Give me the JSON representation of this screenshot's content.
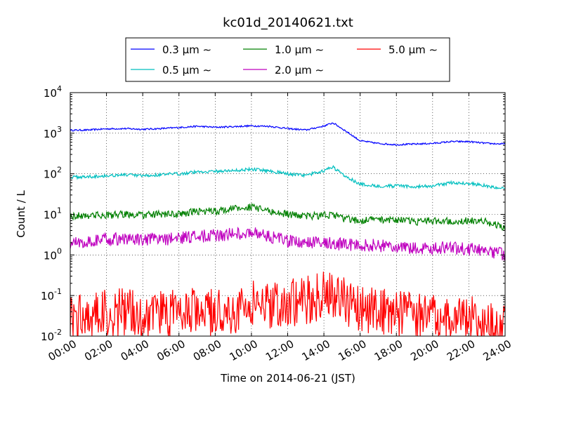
{
  "chart_data": {
    "type": "line",
    "title": "kc01d_20140621.txt",
    "xlabel": "Time on 2014-06-21 (JST)",
    "ylabel": "Count / L",
    "yscale": "log",
    "ylim": [
      0.01,
      10000
    ],
    "xlim": [
      "00:00",
      "24:00"
    ],
    "grid": true,
    "legend_position": "top-center",
    "x_ticks": [
      "00:00",
      "02:00",
      "04:00",
      "06:00",
      "08:00",
      "10:00",
      "12:00",
      "14:00",
      "16:00",
      "18:00",
      "20:00",
      "22:00",
      "24:00"
    ],
    "y_ticks": [
      {
        "value": 0.01,
        "base": "10",
        "exp": "-2"
      },
      {
        "value": 0.1,
        "base": "10",
        "exp": "-1"
      },
      {
        "value": 1,
        "base": "10",
        "exp": "0"
      },
      {
        "value": 10,
        "base": "10",
        "exp": "1"
      },
      {
        "value": 100,
        "base": "10",
        "exp": "2"
      },
      {
        "value": 1000,
        "base": "10",
        "exp": "3"
      },
      {
        "value": 10000,
        "base": "10",
        "exp": "4"
      }
    ],
    "x": [
      "00:00",
      "01:00",
      "02:00",
      "03:00",
      "04:00",
      "05:00",
      "06:00",
      "07:00",
      "08:00",
      "09:00",
      "10:00",
      "11:00",
      "12:00",
      "13:00",
      "14:00",
      "14:30",
      "15:00",
      "16:00",
      "17:00",
      "18:00",
      "19:00",
      "20:00",
      "21:00",
      "22:00",
      "23:00",
      "24:00"
    ],
    "series": [
      {
        "name": "0.3 μm  ∼",
        "color": "#0000ff",
        "noise": 0.02,
        "values": [
          1180,
          1200,
          1280,
          1300,
          1250,
          1300,
          1380,
          1480,
          1400,
          1450,
          1520,
          1480,
          1300,
          1200,
          1500,
          1800,
          1300,
          650,
          560,
          520,
          540,
          560,
          620,
          620,
          560,
          540
        ]
      },
      {
        "name": "0.5 μm  ∼",
        "color": "#00bfbf",
        "noise": 0.04,
        "values": [
          82,
          85,
          90,
          95,
          88,
          95,
          100,
          112,
          115,
          120,
          130,
          118,
          100,
          90,
          120,
          145,
          100,
          55,
          50,
          50,
          48,
          50,
          60,
          58,
          50,
          42
        ]
      },
      {
        "name": "1.0 μm  ∼",
        "color": "#008000",
        "noise": 0.09,
        "values": [
          9,
          9.5,
          9.5,
          10,
          9.5,
          10,
          10,
          12,
          12,
          14,
          15,
          12,
          10,
          9,
          9.5,
          10,
          8,
          7,
          7.5,
          7.5,
          6.5,
          7,
          7,
          7,
          6.5,
          4.8
        ]
      },
      {
        "name": "2.0 μm  ∼",
        "color": "#bf00bf",
        "noise": 0.16,
        "values": [
          1.9,
          2.2,
          2.4,
          2.5,
          2.3,
          2.4,
          2.6,
          2.9,
          3,
          3.3,
          3.6,
          2.9,
          2.2,
          2,
          2.1,
          2,
          1.8,
          1.8,
          1.7,
          1.6,
          1.4,
          1.5,
          1.5,
          1.4,
          1.3,
          1.0
        ]
      },
      {
        "name": "5.0 μm  ∼",
        "color": "#ff0000",
        "noise": 0.6,
        "values": [
          0.03,
          0.035,
          0.035,
          0.04,
          0.035,
          0.035,
          0.035,
          0.04,
          0.04,
          0.04,
          0.06,
          0.06,
          0.065,
          0.075,
          0.1,
          0.1,
          0.08,
          0.05,
          0.04,
          0.035,
          0.03,
          0.03,
          0.025,
          0.025,
          0.02,
          0.02
        ]
      }
    ]
  }
}
